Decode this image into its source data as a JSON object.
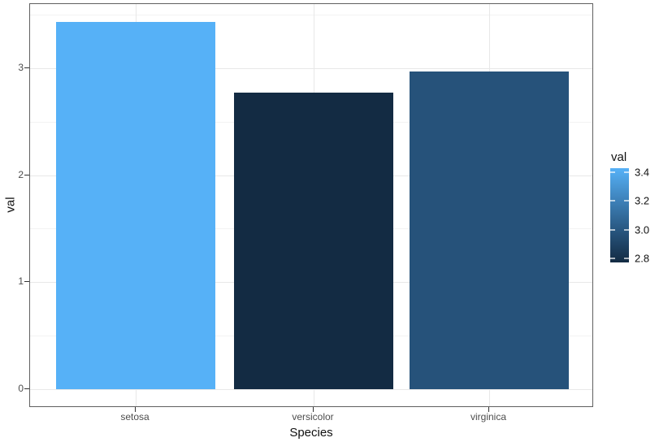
{
  "chart_data": {
    "type": "bar",
    "title": "",
    "xlabel": "Species",
    "ylabel": "val",
    "categories": [
      "setosa",
      "versicolor",
      "virginica"
    ],
    "values": [
      3.43,
      2.77,
      2.97
    ],
    "bar_colors": [
      "#56B1F7",
      "#132B43",
      "#26527A"
    ],
    "ytick_values": [
      0,
      1,
      2,
      3
    ],
    "ytick_labels": [
      "0",
      "1",
      "2",
      "3"
    ],
    "y_minor_ticks": [
      0.5,
      1.5,
      2.5,
      3.5
    ],
    "ylim": [
      -0.17,
      3.6
    ],
    "grid": "major and minor, horizontal + vertical at category centers",
    "legend": {
      "title": "val",
      "style": "continuous-colorbar",
      "position": "right",
      "range": [
        2.77,
        3.43
      ],
      "tick_values": [
        3.4,
        3.2,
        3.0,
        2.8
      ],
      "tick_labels": [
        "3.4",
        "3.2",
        "3.0",
        "2.8"
      ],
      "gradient_stops": [
        "#56B1F7",
        "#4086BF",
        "#26527A",
        "#132B43"
      ],
      "gradient_positions": [
        0,
        31,
        69,
        100
      ]
    },
    "colors": {
      "grid_major": "#e8e8e8",
      "grid_minor": "#f2f2f2",
      "panel_border": "#606060",
      "axis_text": "#4d4d4d",
      "axis_title": "#111111",
      "tick_mark": "#333333",
      "background": "#ffffff"
    }
  }
}
